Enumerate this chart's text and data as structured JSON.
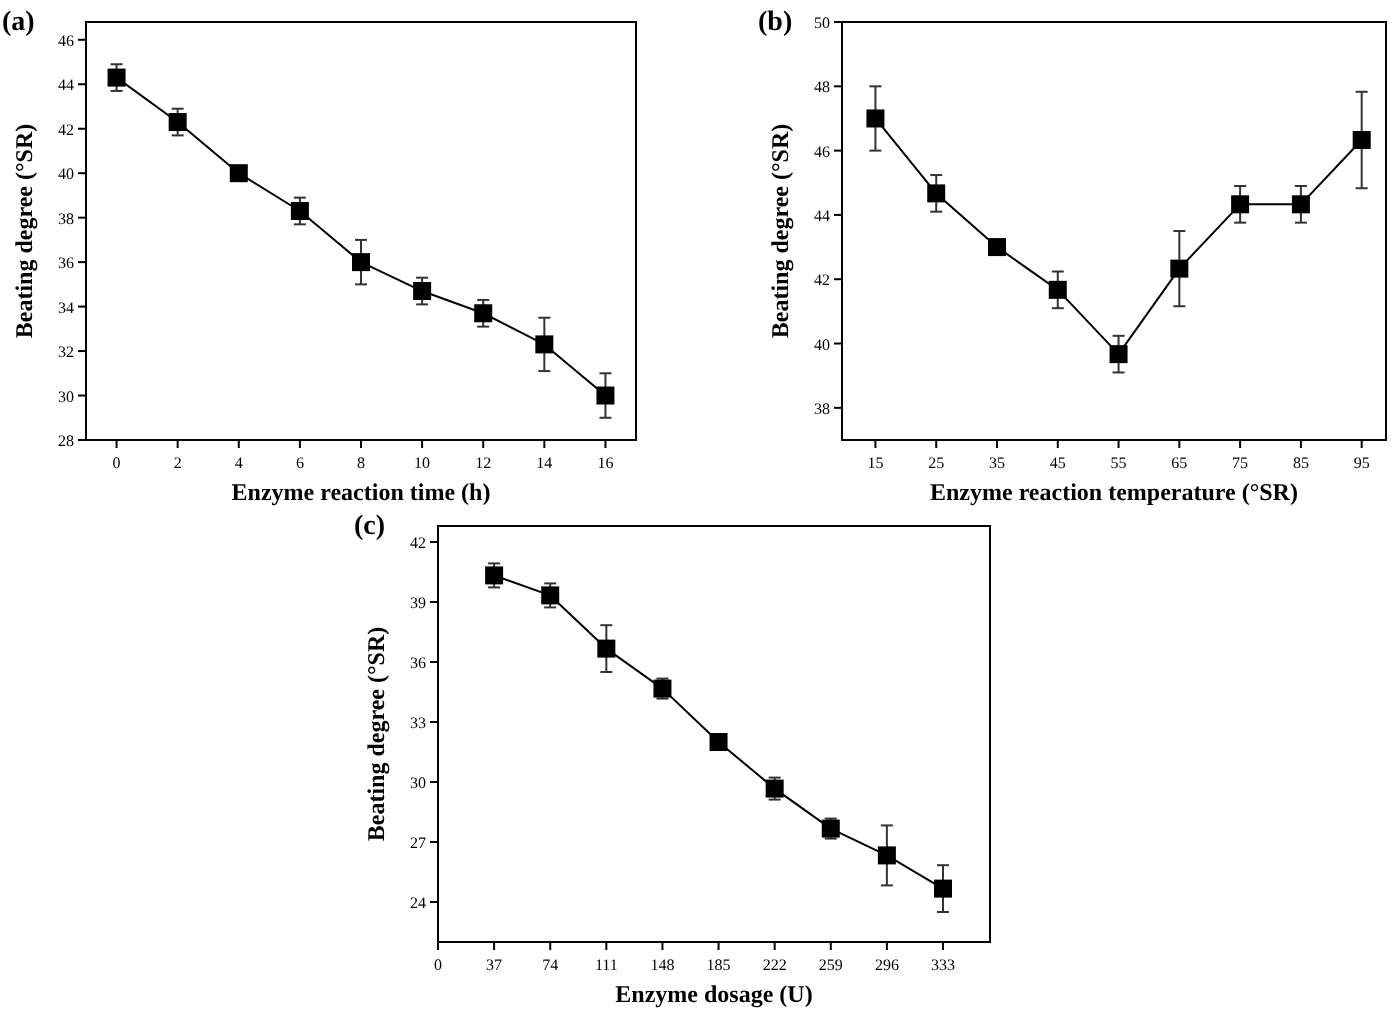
{
  "chart_data": [
    {
      "type": "line",
      "title": "(a)",
      "xlabel": "Enzyme reaction time (h)",
      "ylabel": "Beating degree (°SR)",
      "x": [
        0,
        2,
        4,
        6,
        8,
        10,
        12,
        14,
        16
      ],
      "values": [
        44.3,
        42.3,
        40,
        38.3,
        36,
        34.7,
        33.7,
        32.3,
        30
      ],
      "errors": [
        0.6,
        0.6,
        null,
        0.6,
        1,
        0.6,
        0.6,
        1.2,
        1
      ],
      "color": "#000000",
      "marker": "square",
      "xlim": [
        -1,
        17
      ],
      "xticks": [
        0,
        2,
        4,
        6,
        8,
        10,
        12,
        14,
        16
      ],
      "ylim": [
        28,
        46.8
      ],
      "yticks": [
        28,
        30,
        32,
        34,
        36,
        38,
        40,
        42,
        44,
        46
      ]
    },
    {
      "type": "line",
      "title": "(b)",
      "xlabel": "Enzyme reaction temperature (°SR)",
      "ylabel": "Beating degree (°SR)",
      "x": [
        15,
        25,
        35,
        45,
        55,
        65,
        75,
        85,
        95
      ],
      "values": [
        47,
        44.67,
        43,
        41.67,
        39.67,
        42.33,
        44.33,
        44.33,
        46.33
      ],
      "errors": [
        1,
        0.57,
        null,
        0.57,
        0.57,
        1.17,
        0.57,
        0.57,
        1.5
      ],
      "color": "#000000",
      "marker": "square",
      "xlim": [
        9.5,
        99
      ],
      "xticks": [
        15,
        25,
        35,
        45,
        55,
        65,
        75,
        85,
        95
      ],
      "ylim": [
        37,
        50
      ],
      "yticks": [
        38,
        40,
        42,
        44,
        46,
        48,
        50
      ]
    },
    {
      "type": "line",
      "title": "(c)",
      "xlabel": "Enzyme dosage (U)",
      "ylabel": "Beating degree (°SR)",
      "x": [
        37,
        74,
        111,
        148,
        185,
        222,
        259,
        296,
        333
      ],
      "values": [
        40.33,
        39.33,
        36.67,
        34.67,
        32,
        29.67,
        27.67,
        26.33,
        24.67
      ],
      "errors": [
        0.6,
        0.6,
        1.17,
        0.5,
        null,
        0.55,
        0.5,
        1.5,
        1.17
      ],
      "color": "#000000",
      "marker": "square",
      "xlim": [
        0,
        364
      ],
      "xticks": [
        0,
        37,
        74,
        111,
        148,
        185,
        222,
        259,
        296,
        333
      ],
      "ylim": [
        22,
        42.8
      ],
      "yticks": [
        24,
        27,
        30,
        33,
        36,
        39,
        42
      ]
    }
  ]
}
